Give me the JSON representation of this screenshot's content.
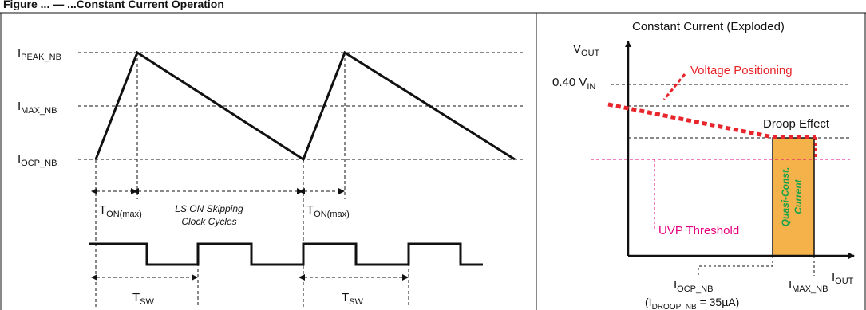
{
  "figure_title": "Figure ... — ...Constant Current Operation",
  "left_panel": {
    "levels": [
      {
        "main": "I",
        "sub": "PEAK_NB"
      },
      {
        "main": "I",
        "sub": "MAX_NB"
      },
      {
        "main": "I",
        "sub": "OCP_NB"
      }
    ],
    "ton_label_1": {
      "main": "T",
      "sub": "ON(max)"
    },
    "ton_label_2": {
      "main": "T",
      "sub": "ON(max)"
    },
    "skip_line1": "LS ON Skipping",
    "skip_line2": "Clock Cycles",
    "tsw_label_1": {
      "main": "T",
      "sub": "SW"
    },
    "tsw_label_2": {
      "main": "T",
      "sub": "SW"
    }
  },
  "right_panel": {
    "title": "Constant Current (Exploded)",
    "vout": {
      "main": "V",
      "sub": "OUT"
    },
    "iout": {
      "main": "I",
      "sub": "OUT"
    },
    "v040": {
      "main": "0.40 V",
      "sub": "IN"
    },
    "voltage_positioning": "Voltage Positioning",
    "droop_effect": "Droop Effect",
    "uvp_threshold": "UVP Threshold",
    "quasi_line1": "Quasi-Const.",
    "quasi_line2": "Current",
    "iocp": {
      "main": "I",
      "sub": "OCP_NB"
    },
    "idroop": {
      "pre": "(I",
      "sub": "DROOP_NB",
      "post": " = 35µA)"
    },
    "imax": {
      "main": "I",
      "sub": "MAX_NB"
    }
  },
  "colors": {
    "red": "#e8252b",
    "magenta": "#e6007e",
    "orange": "#f6b24a",
    "green": "#16a34a"
  }
}
